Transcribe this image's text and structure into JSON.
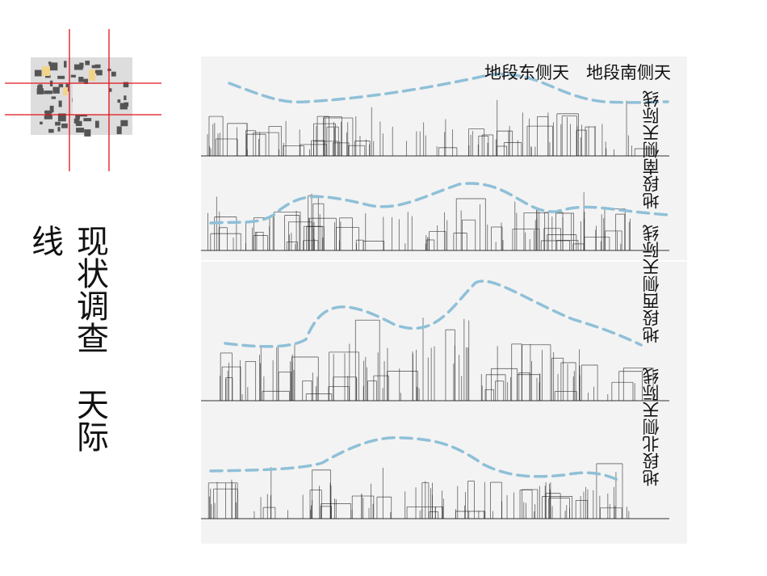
{
  "title": {
    "col1": "现状调查",
    "col1b": "天际",
    "col2": "线"
  },
  "labels": {
    "top_a": "地段东侧天",
    "top_b": "地段南侧天",
    "right_upper_a": "地段南侧天际线",
    "right_upper_b": "地段西侧天际线",
    "right_lower": "地段北侧天际线"
  },
  "colors": {
    "skyline_dash": "#8fc0d8",
    "map_lines": "#e0141c",
    "panel_bg": "#f3f3f3"
  }
}
